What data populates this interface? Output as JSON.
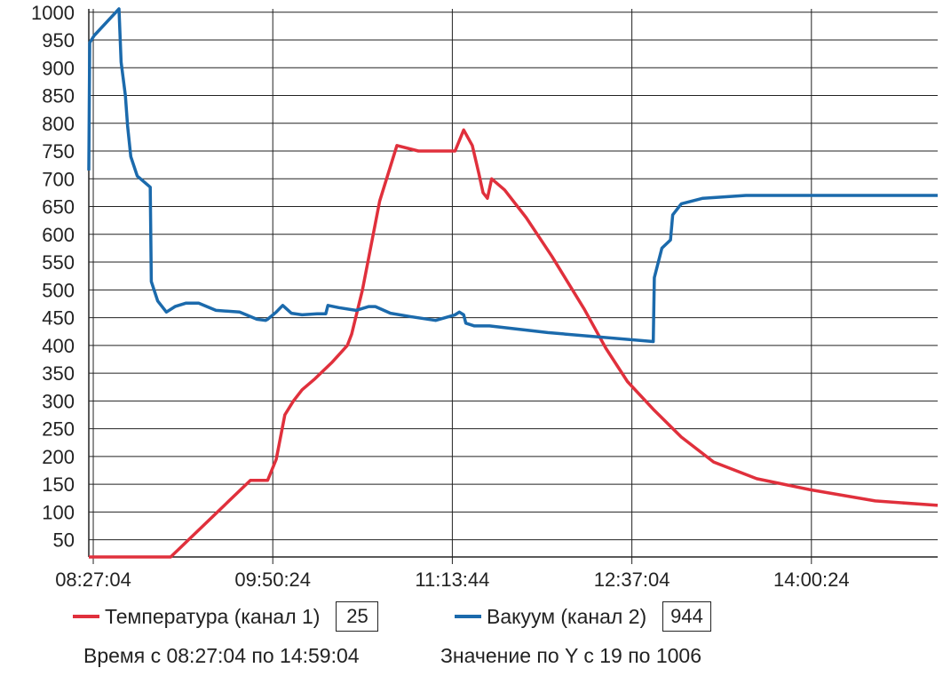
{
  "chart_data": {
    "type": "line",
    "title": "",
    "xlabel": "",
    "ylabel": "",
    "x_ticks": [
      "08:27:04",
      "09:50:24",
      "11:13:44",
      "12:37:04",
      "14:00:24"
    ],
    "x_tick_minutes": [
      507.07,
      590.4,
      673.73,
      757.07,
      840.4
    ],
    "x_range_minutes": [
      505,
      899
    ],
    "y_ticks": [
      50,
      100,
      150,
      200,
      250,
      300,
      350,
      400,
      450,
      500,
      550,
      600,
      650,
      700,
      750,
      800,
      850,
      900,
      950,
      1000
    ],
    "ylim": [
      19,
      1006
    ],
    "grid": true,
    "series": [
      {
        "name": "Температура (канал 1)",
        "color": "#e0303c",
        "x_minutes": [
          505,
          543,
          580,
          588,
          592,
          596,
          600,
          604,
          610,
          618,
          625,
          627,
          632,
          640,
          648,
          658,
          660,
          665,
          675,
          679,
          683,
          686,
          688,
          690,
          692,
          698,
          708,
          720,
          735,
          745,
          755,
          767,
          780,
          795,
          815,
          840,
          870,
          899
        ],
        "values": [
          19,
          19,
          157,
          157,
          195,
          275,
          300,
          320,
          340,
          370,
          400,
          420,
          500,
          660,
          760,
          750,
          750,
          750,
          750,
          788,
          760,
          710,
          675,
          665,
          700,
          680,
          630,
          560,
          465,
          395,
          335,
          285,
          235,
          190,
          160,
          140,
          120,
          112
        ]
      },
      {
        "name": "Вакуум (канал 2)",
        "color": "#1b6aac",
        "x_minutes": [
          505,
          505.4,
          507.5,
          519,
          520,
          522,
          523,
          524.5,
          527.5,
          533.5,
          534,
          537,
          541,
          545,
          550,
          556,
          564,
          575,
          583,
          587,
          588,
          592,
          594,
          595,
          599,
          604,
          611,
          615,
          616,
          621,
          629,
          635,
          638,
          645,
          654,
          666,
          675,
          677,
          679,
          680,
          684,
          691,
          718,
          767,
          767.5,
          771,
          775,
          776,
          780,
          790,
          810,
          840,
          899
        ],
        "values": [
          715,
          945,
          958,
          1006,
          910,
          850,
          795,
          740,
          705,
          685,
          515,
          480,
          460,
          470,
          476,
          476,
          463,
          460,
          447,
          445,
          447,
          460,
          468,
          472,
          458,
          455,
          457,
          457,
          472,
          468,
          463,
          470,
          470,
          458,
          452,
          445,
          455,
          460,
          455,
          440,
          435,
          435,
          423,
          407,
          522,
          575,
          590,
          635,
          655,
          665,
          670,
          670,
          670
        ]
      }
    ],
    "legend": {
      "placement": "bottom",
      "items": [
        {
          "label": "Температура (канал 1)",
          "value": "25",
          "color": "#e0303c"
        },
        {
          "label": "Вакуум (канал 2)",
          "value": "944",
          "color": "#1b6aac"
        }
      ]
    },
    "annotations": {
      "time_range": "Время с 08:27:04 по 14:59:04",
      "y_range": "Значение по Y с 19 по 1006"
    }
  }
}
